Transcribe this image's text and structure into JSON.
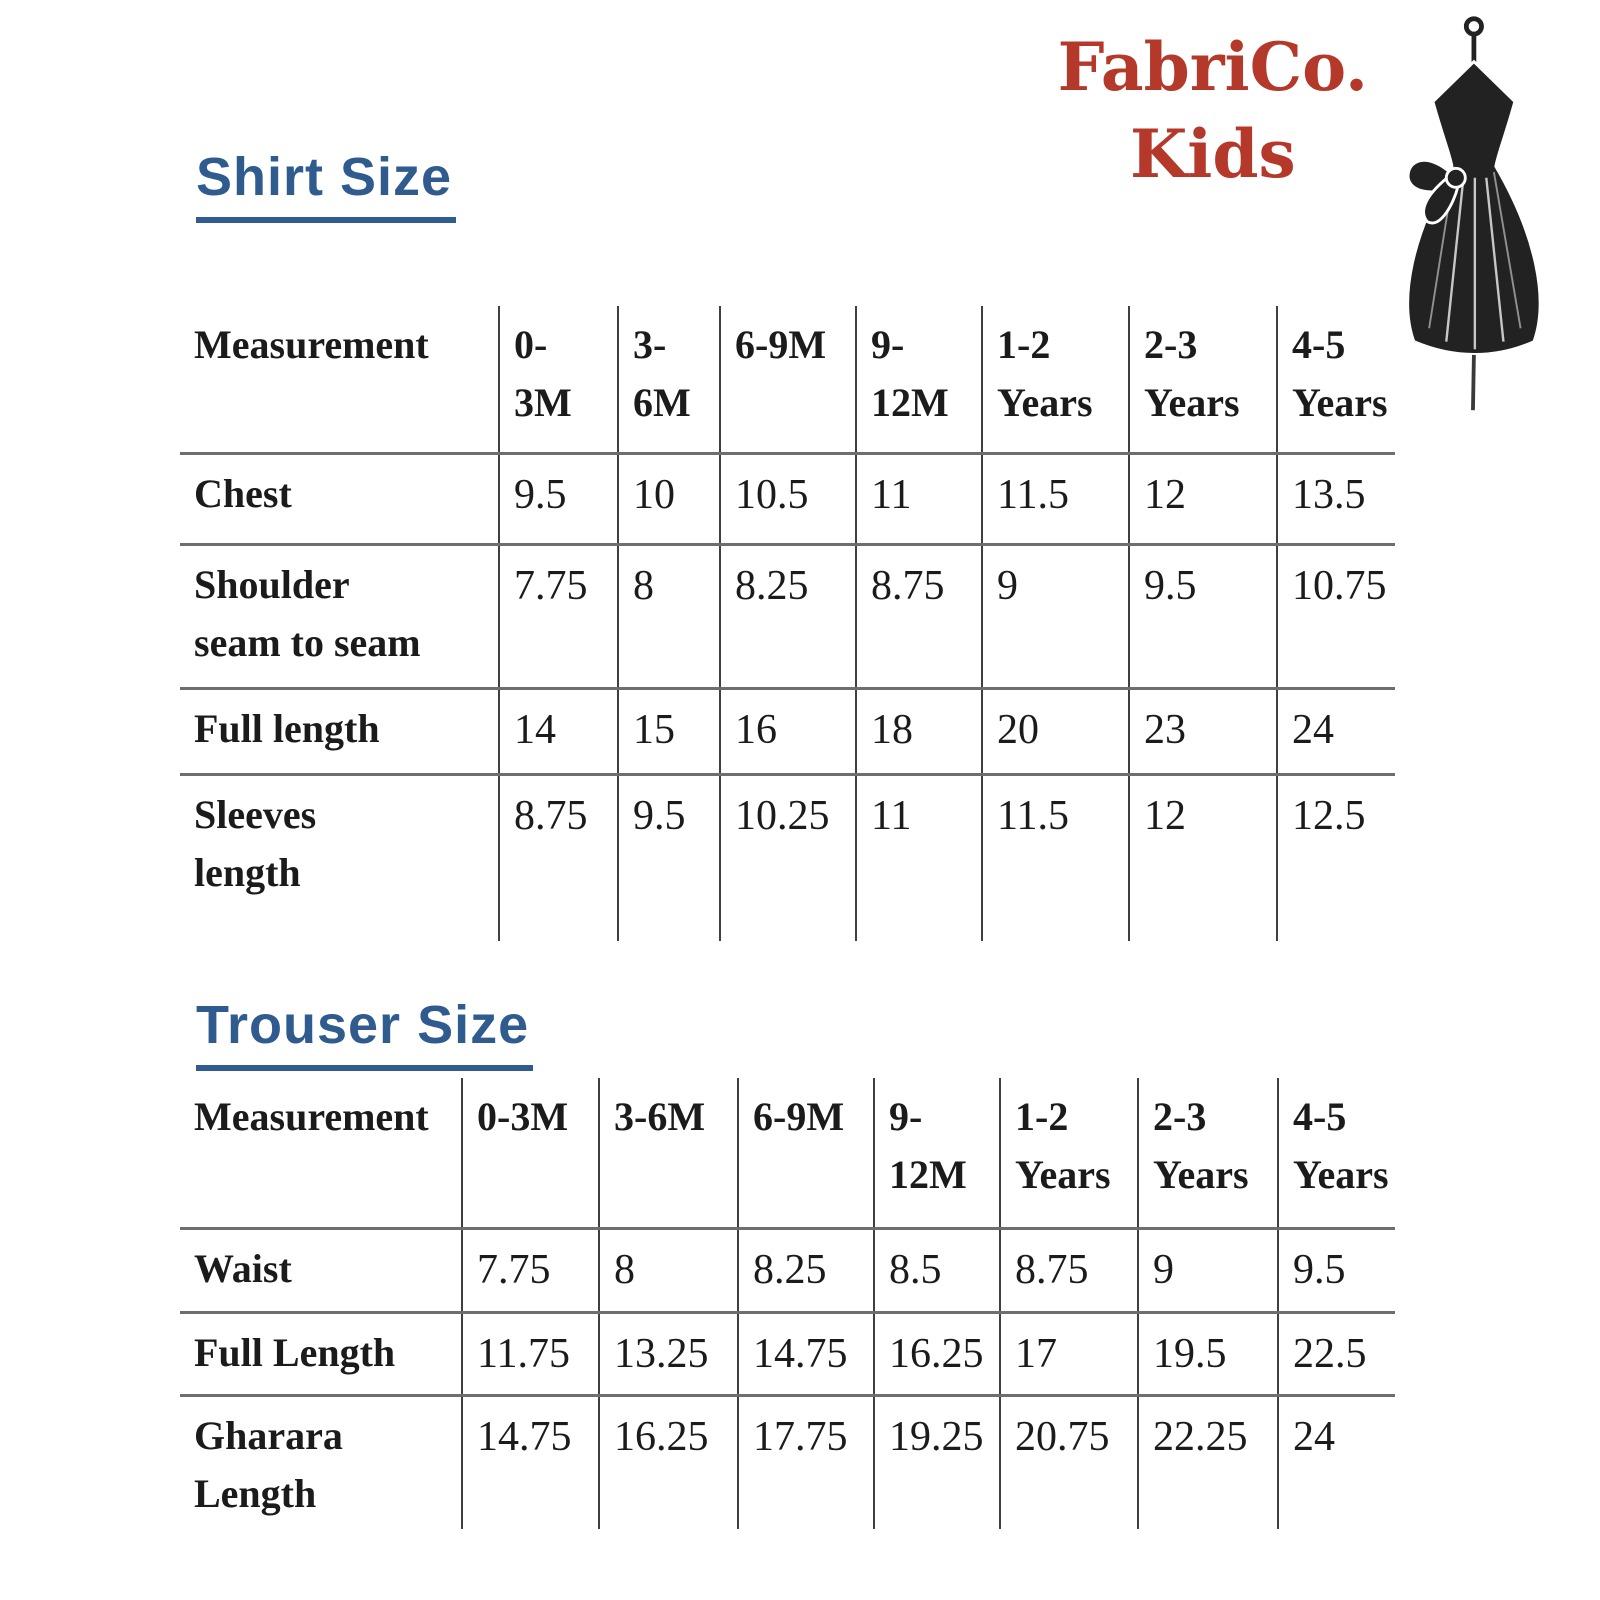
{
  "logo": {
    "line1": "FabriCo.",
    "line2": "Kids",
    "color": "#b5392a",
    "icon": "dress-mannequin-icon"
  },
  "colors": {
    "title_blue": "#2f5b8e",
    "logo_red": "#b5392a",
    "table_text": "#1b1b1b"
  },
  "shirt_section": {
    "title": "Shirt Size",
    "table": {
      "columns": [
        "Measurement",
        "0-\n3M",
        "3-\n6M",
        "6-9M",
        "9-\n12M",
        "1-2\nYears",
        "2-3\nYears",
        "4-5\nYears"
      ],
      "rows": [
        {
          "label": "Chest",
          "values": [
            "9.5",
            "10",
            "10.5",
            "11",
            "11.5",
            "12",
            "13.5"
          ]
        },
        {
          "label": "Shoulder\nseam to seam",
          "values": [
            "7.75",
            "8",
            "8.25",
            "8.75",
            "9",
            "9.5",
            "10.75"
          ]
        },
        {
          "label": "Full length",
          "values": [
            "14",
            "15",
            "16",
            "18",
            "20",
            "23",
            "24"
          ]
        },
        {
          "label": "Sleeves\nlength",
          "values": [
            "8.75",
            "9.5",
            "10.25",
            "11",
            "11.5",
            "12",
            "12.5"
          ]
        }
      ]
    }
  },
  "trouser_section": {
    "title": "Trouser Size",
    "table": {
      "columns": [
        "Measurement",
        "0-3M",
        "3-6M",
        "6-9M",
        "9-\n12M",
        "1-2\nYears",
        "2-3\nYears",
        "4-5\nYears"
      ],
      "rows": [
        {
          "label": "Waist",
          "values": [
            "7.75",
            "8",
            "8.25",
            "8.5",
            "8.75",
            "9",
            "9.5"
          ]
        },
        {
          "label": "Full Length",
          "values": [
            "11.75",
            "13.25",
            "14.75",
            "16.25",
            "17",
            "19.5",
            "22.5"
          ]
        },
        {
          "label": "Gharara\nLength",
          "values": [
            "14.75",
            "16.25",
            "17.75",
            "19.25",
            "20.75",
            "22.25",
            "24"
          ]
        }
      ]
    }
  }
}
